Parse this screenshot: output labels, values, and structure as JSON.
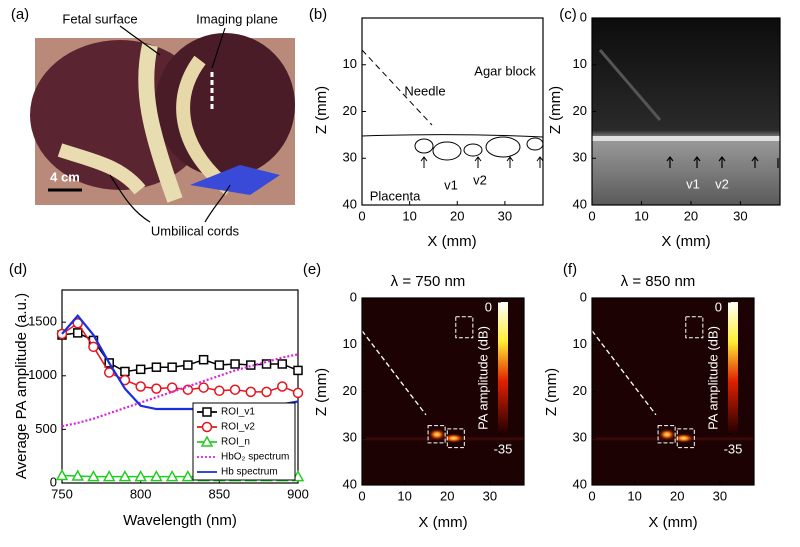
{
  "chart_data": [
    {
      "type": "photo",
      "panel_label": "(a)",
      "annotations": [
        "Fetal surface",
        "Imaging plane",
        "Umbilical cords"
      ],
      "scale_bar": "4 cm"
    },
    {
      "type": "schematic",
      "panel_label": "(b)",
      "xlabel": "X (mm)",
      "ylabel": "Z (mm)",
      "xlim": [
        0,
        38
      ],
      "ylim": [
        0,
        40
      ],
      "xticks": [
        0,
        10,
        20,
        30
      ],
      "yticks": [
        10,
        20,
        30,
        40
      ],
      "annotations": [
        "Agar block",
        "Needle",
        "Placenta",
        "v1",
        "v2"
      ]
    },
    {
      "type": "ultrasound",
      "panel_label": "(c)",
      "xlabel": "X (mm)",
      "ylabel": "Z (mm)",
      "xlim": [
        0,
        38
      ],
      "ylim": [
        0,
        40
      ],
      "xticks": [
        0,
        10,
        20,
        30
      ],
      "yticks": [
        0,
        10,
        20,
        30,
        40
      ],
      "annotations": [
        "v1",
        "v2"
      ]
    },
    {
      "type": "line",
      "panel_label": "(d)",
      "xlabel": "Wavelength (nm)",
      "ylabel": "Average PA amplitude (a.u.)",
      "x": [
        750,
        760,
        770,
        780,
        790,
        800,
        810,
        820,
        830,
        840,
        850,
        860,
        870,
        880,
        890,
        900
      ],
      "xlim": [
        750,
        900
      ],
      "ylim": [
        0,
        1800
      ],
      "xticks": [
        750,
        800,
        850,
        900
      ],
      "yticks": [
        0,
        500,
        1000,
        1500
      ],
      "legend": "lower right",
      "series": [
        {
          "name": "ROI_v1",
          "color": "#000000",
          "marker": "square",
          "values": [
            1380,
            1400,
            1330,
            1120,
            1040,
            1060,
            1080,
            1080,
            1100,
            1150,
            1100,
            1110,
            1100,
            1110,
            1110,
            1050
          ]
        },
        {
          "name": "ROI_v2",
          "color": "#e8141c",
          "marker": "circle",
          "values": [
            1390,
            1490,
            1270,
            1030,
            960,
            900,
            880,
            890,
            870,
            890,
            860,
            870,
            850,
            850,
            900,
            840
          ]
        },
        {
          "name": "ROI_n",
          "color": "#22cc22",
          "marker": "triangle",
          "values": [
            70,
            65,
            60,
            60,
            60,
            60,
            60,
            60,
            60,
            60,
            60,
            60,
            60,
            60,
            60,
            60
          ]
        },
        {
          "name": "HbO₂ spectrum",
          "color": "#e020e0",
          "dash": "dotted",
          "values": [
            530,
            560,
            600,
            650,
            700,
            750,
            800,
            850,
            900,
            950,
            1000,
            1050,
            1090,
            1130,
            1170,
            1200
          ]
        },
        {
          "name": "Hb spectrum",
          "color": "#1a2ee0",
          "values": [
            1390,
            1560,
            1380,
            1120,
            880,
            720,
            690,
            690,
            690,
            690,
            695,
            700,
            705,
            715,
            735,
            760
          ]
        }
      ]
    },
    {
      "type": "pa_image",
      "panel_label": "(e)",
      "title": "λ = 750 nm",
      "xlabel": "X (mm)",
      "ylabel": "Z (mm)",
      "xlim": [
        0,
        38
      ],
      "ylim": [
        0,
        40
      ],
      "xticks": [
        0,
        10,
        20,
        30
      ],
      "yticks": [
        0,
        10,
        20,
        30,
        40
      ],
      "colorbar_label": "PA amplitude (dB)",
      "clim": [
        -35,
        0
      ],
      "cticks": [
        0,
        -35
      ],
      "annotations": [
        "Needle",
        "ROI_n",
        "ROI_v1",
        "ROI_v2"
      ]
    },
    {
      "type": "pa_image",
      "panel_label": "(f)",
      "title": "λ = 850 nm",
      "xlabel": "X (mm)",
      "ylabel": "Z (mm)",
      "xlim": [
        0,
        38
      ],
      "ylim": [
        0,
        40
      ],
      "xticks": [
        0,
        10,
        20,
        30
      ],
      "yticks": [
        0,
        10,
        20,
        30,
        40
      ],
      "colorbar_label": "PA amplitude (dB)",
      "clim": [
        -35,
        0
      ],
      "cticks": [
        0,
        -35
      ],
      "annotations": [
        "Needle",
        "ROI_n",
        "ROI_v1",
        "ROI_v2"
      ]
    }
  ]
}
